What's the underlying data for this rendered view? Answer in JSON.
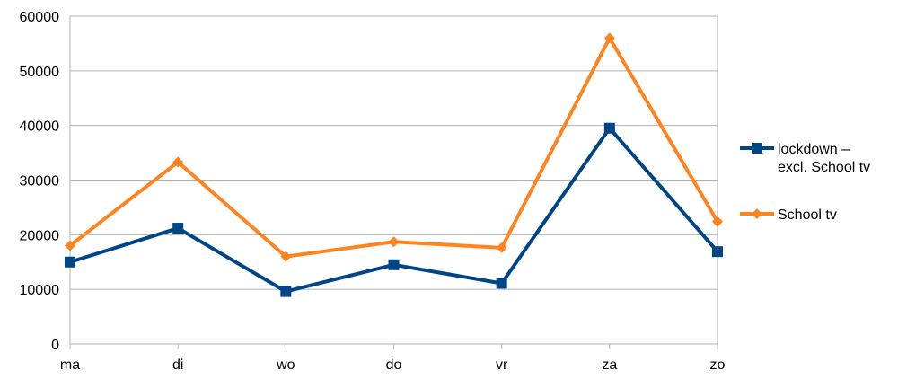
{
  "chart_data": {
    "type": "line",
    "categories": [
      "ma",
      "di",
      "wo",
      "do",
      "vr",
      "za",
      "zo"
    ],
    "ylim": [
      0,
      60000
    ],
    "yticks": [
      0,
      10000,
      20000,
      30000,
      40000,
      50000,
      60000
    ],
    "grid": true,
    "legend_position": "right",
    "series": [
      {
        "name_lines": [
          "lockdown –",
          "excl. School tv"
        ],
        "color": "#004586",
        "marker": "square",
        "values": [
          15000,
          21200,
          9600,
          14500,
          11100,
          39500,
          16900
        ]
      },
      {
        "name_lines": [
          "School tv"
        ],
        "color": "#ff8420",
        "marker": "diamond",
        "values": [
          18000,
          33300,
          16000,
          18700,
          17600,
          56000,
          22400
        ]
      }
    ]
  }
}
